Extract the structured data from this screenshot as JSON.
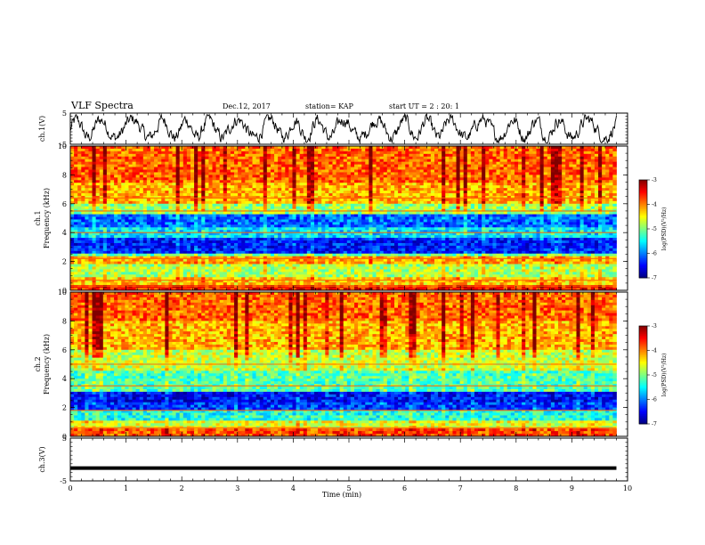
{
  "header": {
    "title": "VLF Spectra",
    "date": "Dec.12, 2017",
    "station": "station= KAP",
    "start": "start  UT =  2 : 20: 1"
  },
  "chart_data": [
    {
      "type": "line",
      "panel": "ch1-waveform",
      "ylabel": "ch.1(V)",
      "ylim": [
        -5,
        5
      ],
      "yticks": [
        "5",
        "-5"
      ],
      "x_range_min": [
        0,
        9.8
      ],
      "style": "noisy waveform trace, black",
      "color": "#000000"
    },
    {
      "type": "heatmap",
      "panel": "ch1-spectrogram",
      "ylabel": "ch.1\nFrequency (kHz)",
      "ylim": [
        0,
        10
      ],
      "yticks": [
        "0",
        "2",
        "4",
        "6",
        "8",
        "10"
      ],
      "x_range_min": [
        0,
        9.8
      ],
      "colorbar": {
        "label": "log(PSD)(V²/Hz)",
        "range": [
          -7,
          -3
        ],
        "ticks": [
          "-3",
          "-4",
          "-5",
          "-6",
          "-7"
        ]
      },
      "bands": [
        {
          "f": [
            0,
            0.4
          ],
          "level": -3.6
        },
        {
          "f": [
            0.4,
            0.9
          ],
          "level": -4.3
        },
        {
          "f": [
            0.9,
            1.8
          ],
          "level": -4.8
        },
        {
          "f": [
            1.8,
            2.3
          ],
          "level": -4.2
        },
        {
          "f": [
            2.3,
            2.6
          ],
          "level": -5.1
        },
        {
          "f": [
            2.6,
            3.6
          ],
          "level": -6.4
        },
        {
          "f": [
            3.6,
            4.3
          ],
          "level": -5.6
        },
        {
          "f": [
            4.3,
            5.2
          ],
          "level": -6.1
        },
        {
          "f": [
            5.2,
            6.0
          ],
          "level": -4.9
        },
        {
          "f": [
            6.0,
            7.5
          ],
          "level": -4.2
        },
        {
          "f": [
            7.5,
            10
          ],
          "level": -3.9
        }
      ],
      "lines_khz": [
        0.3,
        0.7,
        2.2,
        4.0,
        5.5,
        6.4
      ]
    },
    {
      "type": "heatmap",
      "panel": "ch2-spectrogram",
      "ylabel": "ch.2\nFrequency (kHz)",
      "ylim": [
        0,
        10
      ],
      "yticks": [
        "0",
        "2",
        "4",
        "6",
        "8",
        "10"
      ],
      "x_range_min": [
        0,
        9.8
      ],
      "colorbar": {
        "label": "log(PSD)(V²/Hz)",
        "range": [
          -7,
          -3
        ],
        "ticks": [
          "-3",
          "-4",
          "-5",
          "-6",
          "-7"
        ]
      },
      "bands": [
        {
          "f": [
            0,
            0.5
          ],
          "level": -3.8
        },
        {
          "f": [
            0.5,
            1.0
          ],
          "level": -4.6
        },
        {
          "f": [
            1.0,
            1.9
          ],
          "level": -5.4
        },
        {
          "f": [
            1.9,
            2.4
          ],
          "level": -6.3
        },
        {
          "f": [
            2.4,
            3.1
          ],
          "level": -6.5
        },
        {
          "f": [
            3.1,
            4.5
          ],
          "level": -5.2
        },
        {
          "f": [
            4.5,
            6.0
          ],
          "level": -4.7
        },
        {
          "f": [
            6.0,
            8.0
          ],
          "level": -4.2
        },
        {
          "f": [
            8.0,
            10
          ],
          "level": -3.9
        }
      ],
      "lines_khz": [
        0.6,
        1.8,
        3.5,
        5.0
      ]
    },
    {
      "type": "line",
      "panel": "ch3-waveform",
      "ylabel": "ch.3(V)",
      "ylim": [
        -5,
        5
      ],
      "yticks": [
        "5",
        "-5"
      ],
      "value_v": -2.0,
      "x_range_min": [
        0,
        9.8
      ],
      "color": "#000000"
    }
  ],
  "x_axis": {
    "label": "Time  (min)",
    "range": [
      0,
      10
    ],
    "ticks": [
      "0",
      "1",
      "2",
      "3",
      "4",
      "5",
      "6",
      "7",
      "8",
      "9",
      "10"
    ]
  }
}
